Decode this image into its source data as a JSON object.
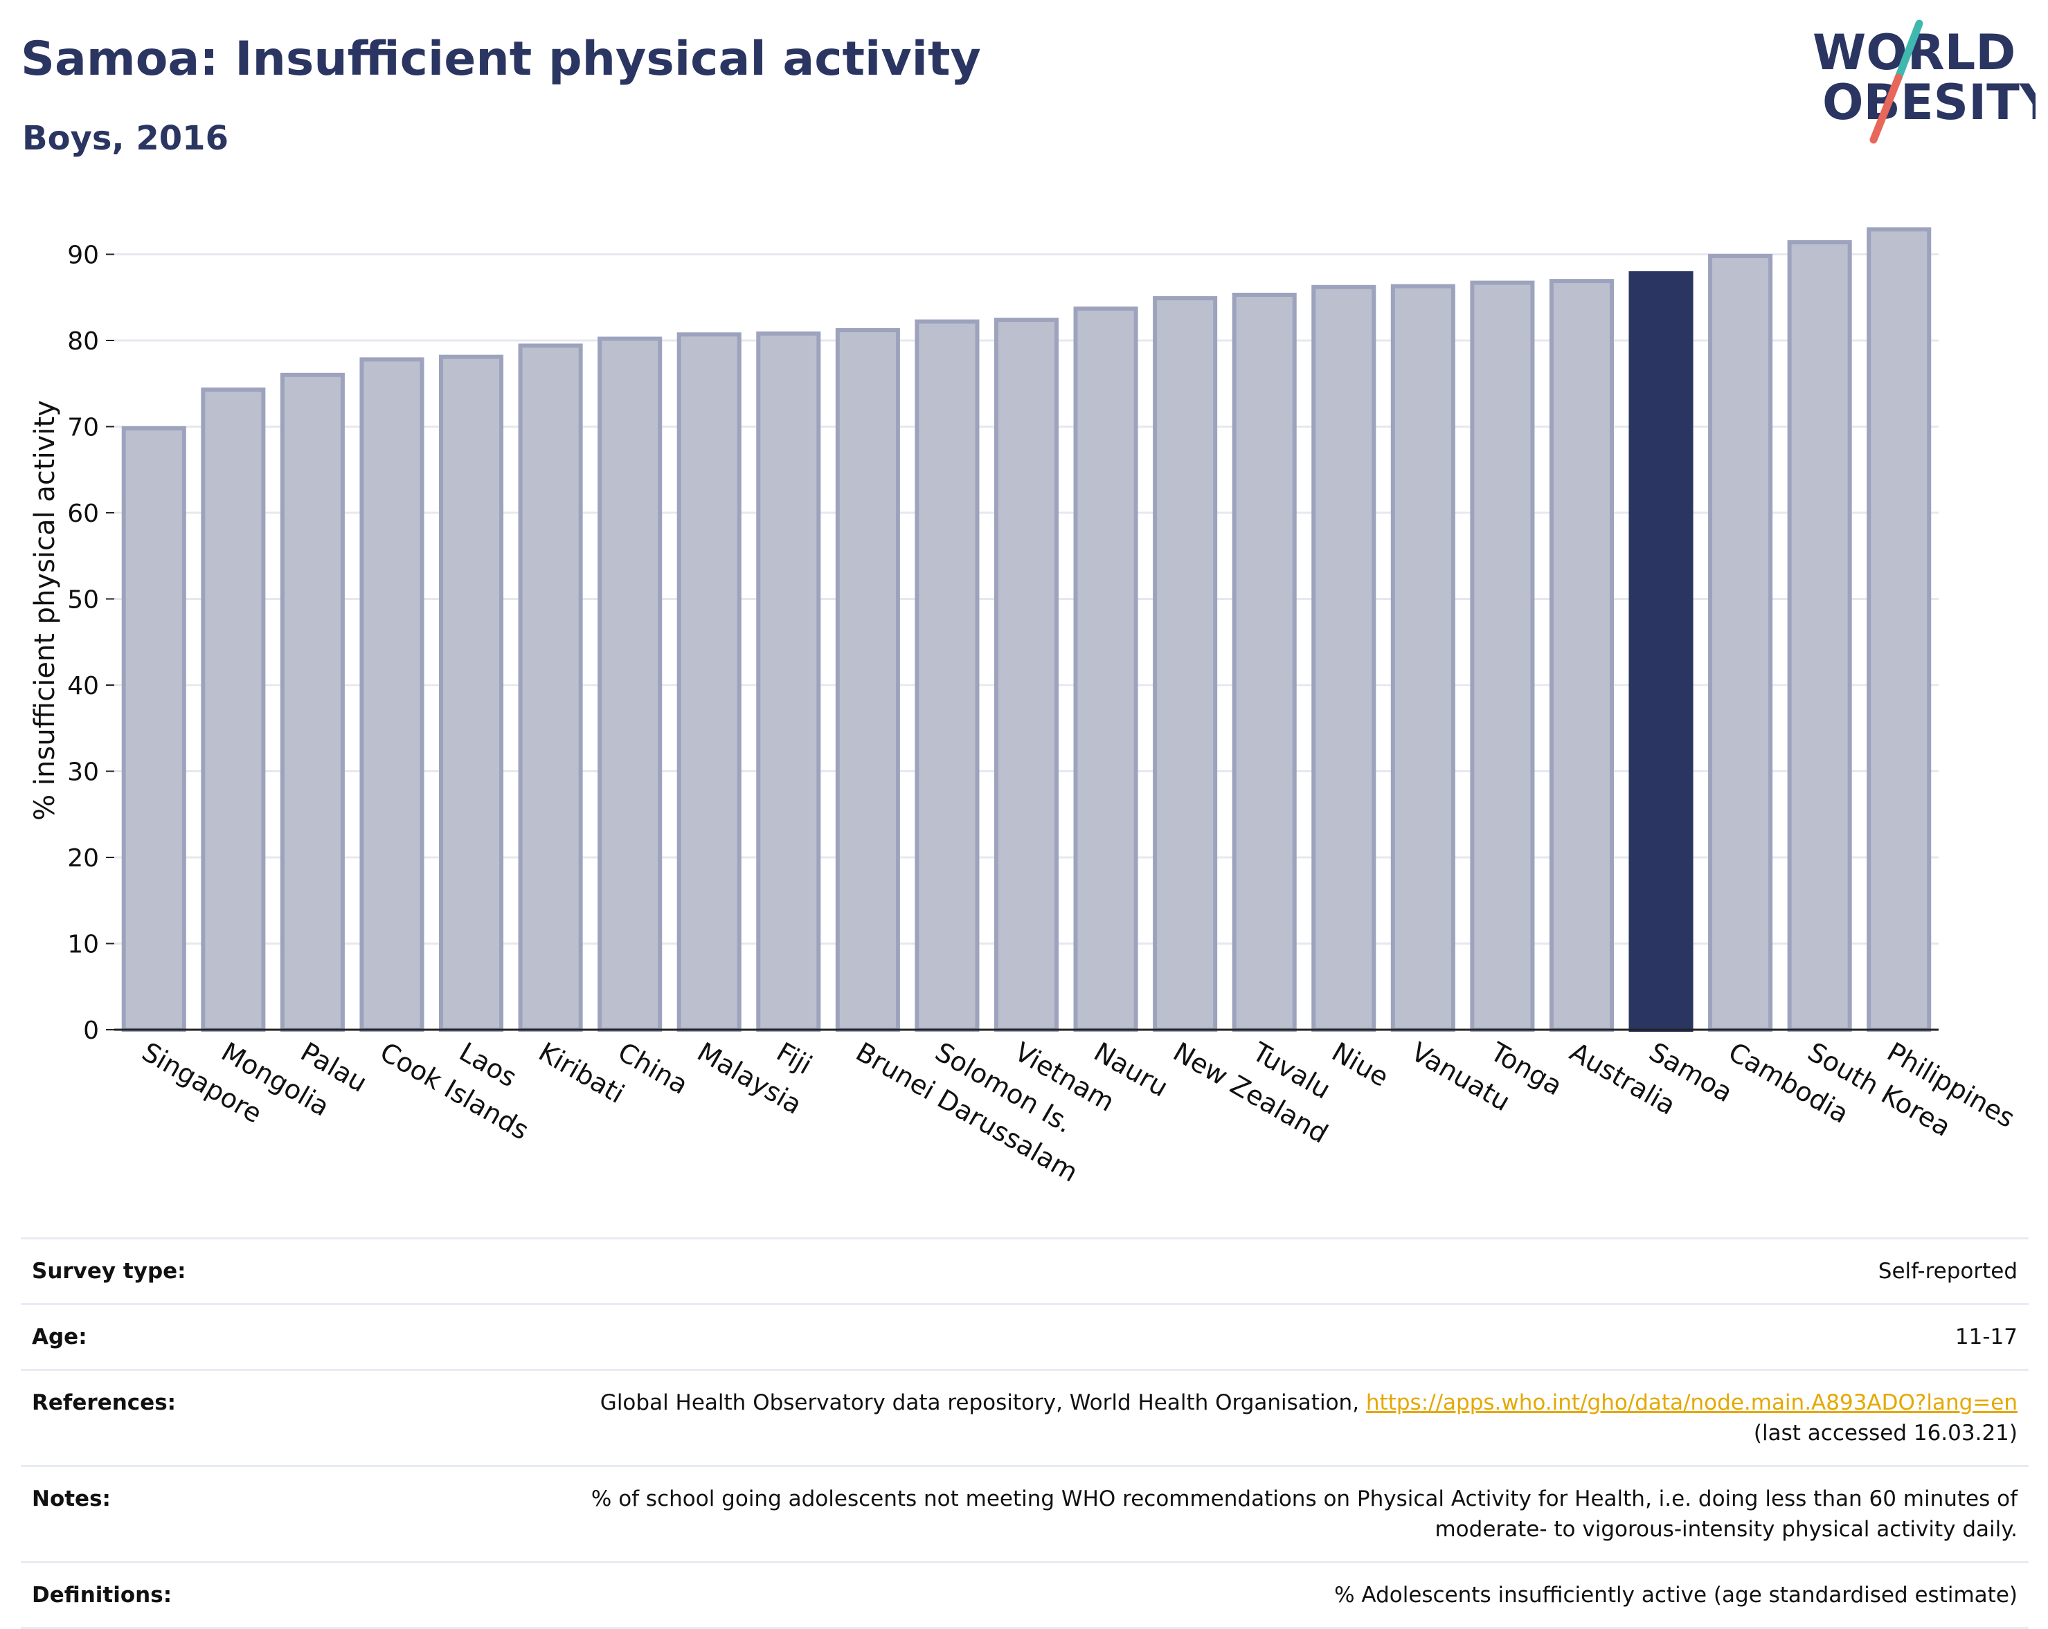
{
  "header": {
    "title": "Samoa: Insufficient physical activity",
    "subtitle": "Boys, 2016"
  },
  "logo": {
    "line1": "WORLD",
    "line2": "OBESITY",
    "colors": {
      "text": "#2b3561",
      "slash_top": "#3fb9b0",
      "slash_bottom": "#e7675a"
    }
  },
  "chart_data": {
    "type": "bar",
    "ylabel": "% insufficient physical activity",
    "ylim": [
      0,
      95
    ],
    "yticks": [
      0,
      10,
      20,
      30,
      40,
      50,
      60,
      70,
      80,
      90
    ],
    "grid": true,
    "highlight": "Samoa",
    "colors": {
      "bar_fill": "#bcc0ce",
      "bar_border": "#9da3bd",
      "highlight_fill": "#2b3561",
      "grid": "#e6e8ef",
      "axis": "#222222"
    },
    "categories": [
      "Singapore",
      "Mongolia",
      "Palau",
      "Cook Islands",
      "Laos",
      "Kiribati",
      "China",
      "Malaysia",
      "Fiji",
      "Brunei Darussalam",
      "Solomon Is.",
      "Vietnam",
      "Nauru",
      "New Zealand",
      "Tuvalu",
      "Niue",
      "Vanuatu",
      "Tonga",
      "Australia",
      "Samoa",
      "Cambodia",
      "South Korea",
      "Philippines"
    ],
    "values": [
      69.8,
      74.3,
      76.0,
      77.8,
      78.1,
      79.4,
      80.2,
      80.7,
      80.8,
      81.2,
      82.2,
      82.4,
      83.7,
      84.9,
      85.3,
      86.2,
      86.3,
      86.7,
      86.9,
      87.8,
      89.8,
      91.4,
      92.9
    ]
  },
  "info": {
    "survey_type_label": "Survey type:",
    "survey_type_value": "Self-reported",
    "age_label": "Age:",
    "age_value": "11-17",
    "references_label": "References:",
    "references_text": "Global Health Observatory data repository, World Health Organisation, ",
    "references_link": "https://apps.who.int/gho/data/node.main.A893ADO?lang=en",
    "references_accessed": "(last accessed 16.03.21)",
    "notes_label": "Notes:",
    "notes_line1": "% of school going adolescents not meeting WHO recommendations on Physical Activity for Health, i.e. doing less than 60 minutes of",
    "notes_line2": "moderate- to vigorous-intensity physical activity daily.",
    "definitions_label": "Definitions:",
    "definitions_value": "% Adolescents insufficiently active (age standardised estimate)"
  }
}
